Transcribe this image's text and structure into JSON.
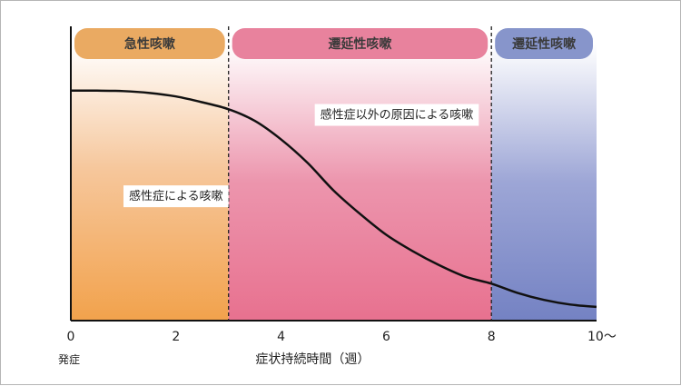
{
  "chart_data": {
    "type": "line",
    "title": "",
    "xlabel": "症状持続時間（週）",
    "ylabel": "",
    "xlim": [
      0,
      10
    ],
    "x_ticks": [
      {
        "value": 0,
        "label": "0"
      },
      {
        "value": 2,
        "label": "2"
      },
      {
        "value": 4,
        "label": "4"
      },
      {
        "value": 6,
        "label": "6"
      },
      {
        "value": 8,
        "label": "8"
      },
      {
        "value": 10,
        "label": "10〜"
      }
    ],
    "x_sublabel": {
      "value": 0,
      "label": "発症"
    },
    "phases": [
      {
        "name": "急性咳嗽",
        "x_start": 0,
        "x_end": 3,
        "color": "#f1a24a",
        "header_color": "#eaaa62"
      },
      {
        "name": "遷延性咳嗽",
        "x_start": 3,
        "x_end": 8,
        "color": "#e8718f",
        "header_color": "#e8829d"
      },
      {
        "name": "遷延性咳嗽",
        "x_start": 8,
        "x_end": 10,
        "color": "#7582c4",
        "header_color": "#8795cb"
      }
    ],
    "series": [
      {
        "name": "",
        "x": [
          0,
          0.5,
          1,
          1.5,
          2,
          2.5,
          3,
          3.5,
          4,
          4.5,
          5,
          5.5,
          6,
          6.5,
          7,
          7.5,
          8,
          8.5,
          9,
          9.5,
          10
        ],
        "y": [
          0.95,
          0.95,
          0.948,
          0.94,
          0.925,
          0.9,
          0.87,
          0.82,
          0.74,
          0.64,
          0.52,
          0.42,
          0.33,
          0.26,
          0.2,
          0.15,
          0.12,
          0.08,
          0.05,
          0.03,
          0.02
        ]
      }
    ],
    "annotations": [
      {
        "text": "感性症による咳嗽",
        "x": 2.0,
        "y": 0.48
      },
      {
        "text": "感性症以外の原因による咳嗽",
        "x": 6.2,
        "y": 0.83
      }
    ],
    "divider_lines_at": [
      3,
      8
    ]
  }
}
